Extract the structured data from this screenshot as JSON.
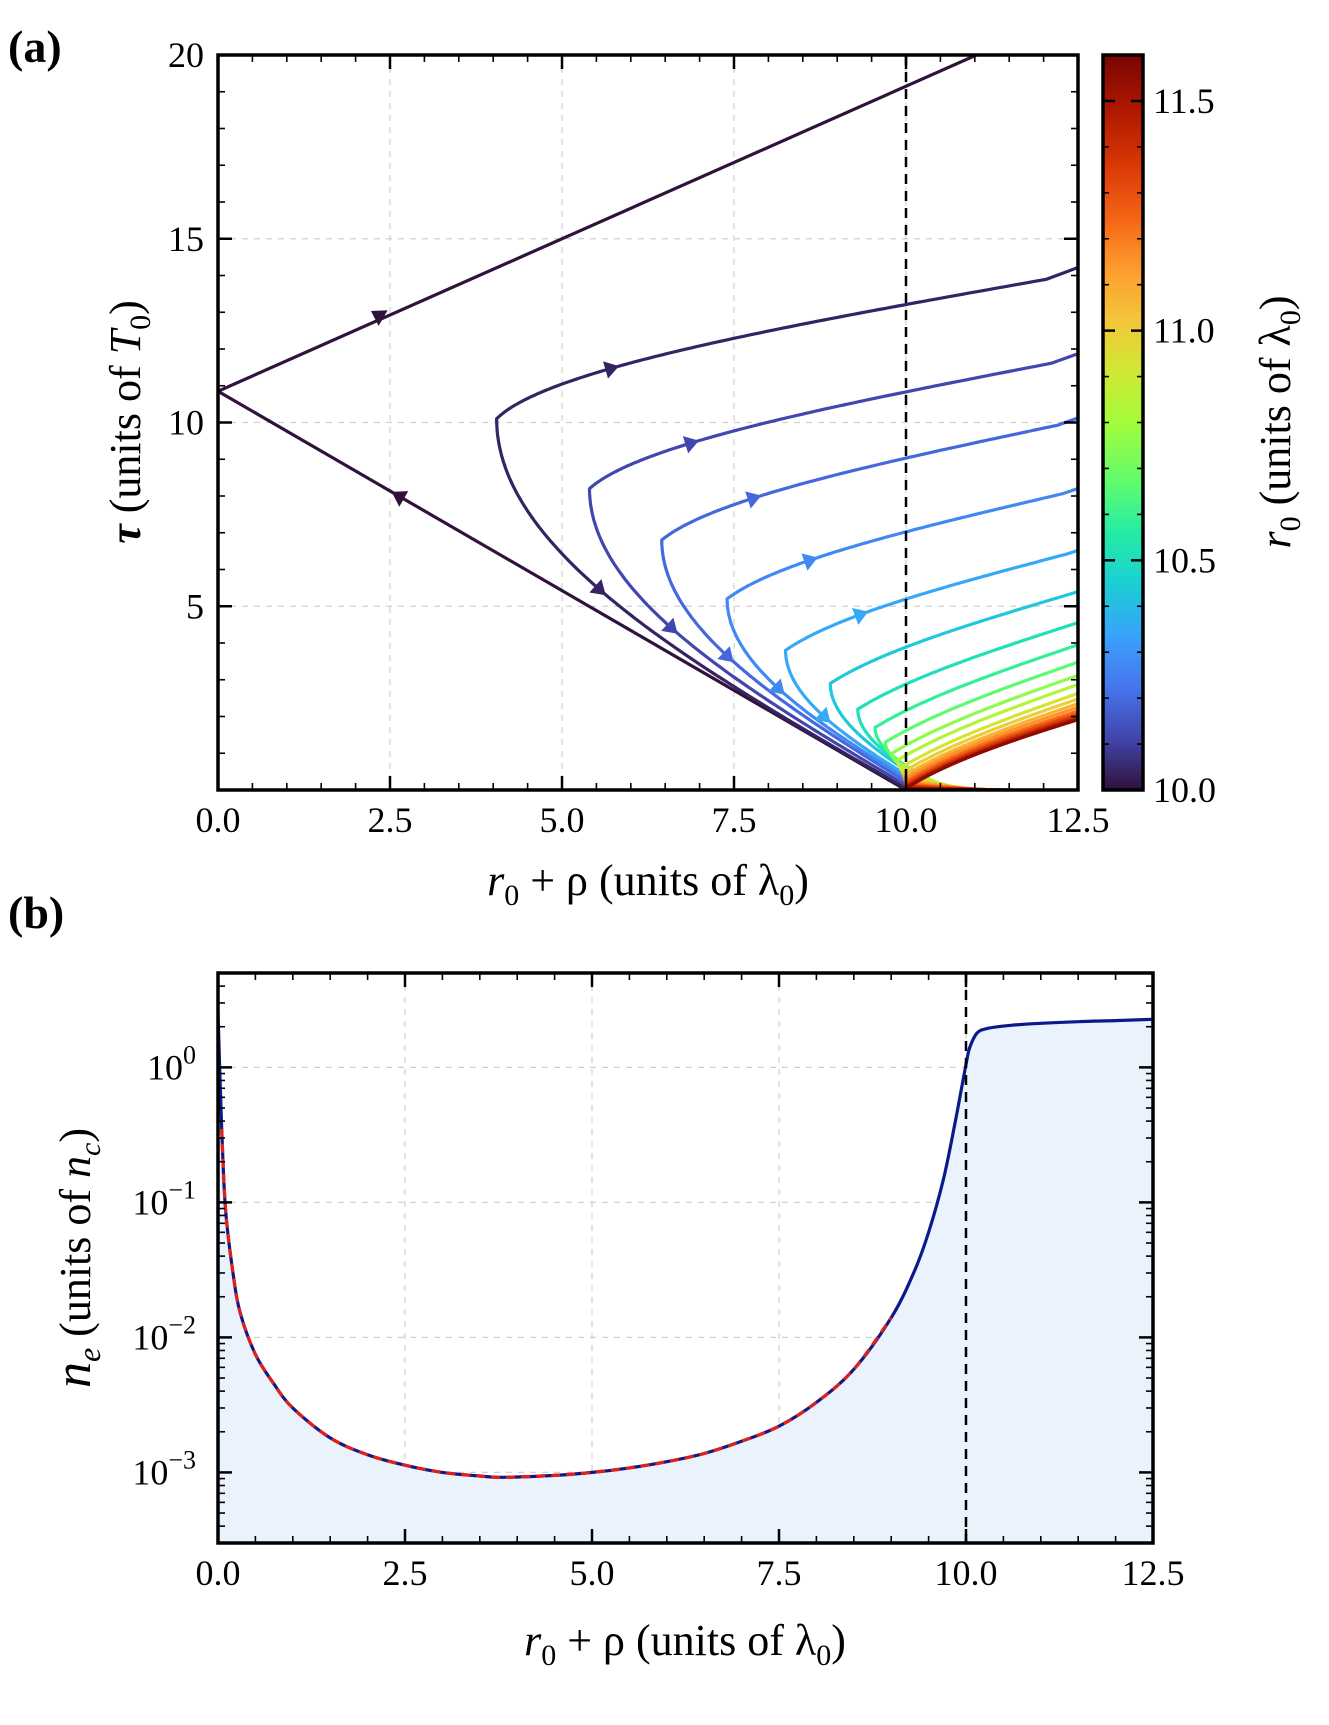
{
  "panel_a": {
    "label": "(a)",
    "xlabel": {
      "main": "r",
      "sub": "0",
      "rest": " + ρ (units of λ",
      "sub2": "0",
      "end": ")"
    },
    "ylabel": {
      "sym": "τ",
      "rest": " (units of ",
      "T": "T",
      "sub": "0",
      "end": ")"
    },
    "colorbar_label": {
      "sym": "r",
      "sub": "0",
      "rest": " (units of λ",
      "sub2": "0",
      "end": ")"
    },
    "colorbar_ticks": [
      "10.0",
      "10.5",
      "11.0",
      "11.5"
    ]
  },
  "panel_b": {
    "label": "(b)",
    "xlabel": {
      "main": "r",
      "sub": "0",
      "rest": " + ρ (units of λ",
      "sub2": "0",
      "end": ")"
    },
    "ylabel": {
      "sym": "n",
      "sub": "e",
      "rest": " (units of ",
      "n": "n",
      "sub2": "c",
      "end": ")"
    }
  },
  "chart_data": [
    {
      "type": "line",
      "xlim": [
        0,
        12.5
      ],
      "ylim": [
        0,
        20
      ],
      "x_ticks": [
        "0.0",
        "2.5",
        "5.0",
        "7.5",
        "10.0",
        "12.5"
      ],
      "y_ticks": [
        "5",
        "10",
        "15",
        "20"
      ],
      "grid": true,
      "reference_line_x": 10.0,
      "colorbar": {
        "range": [
          10.0,
          11.6
        ],
        "colormap": "turbo",
        "ticks": [
          10.0,
          10.5,
          11.0,
          11.5
        ]
      },
      "series": [
        {
          "r0": 10.0,
          "tmin": 10.85,
          "rmin": 0.0,
          "arrows": [
            2.4,
            2.7
          ]
        },
        {
          "r0": 10.04,
          "tmin": 10.1,
          "rmin": 4.05,
          "arrows": [
            5.0,
            5.1
          ]
        },
        {
          "r0": 10.12,
          "tmin": 8.2,
          "rmin": 5.4,
          "arrows": [
            5.9,
            6.0
          ]
        },
        {
          "r0": 10.2,
          "tmin": 6.8,
          "rmin": 6.45,
          "arrows": [
            6.9,
            7.1
          ]
        },
        {
          "r0": 10.28,
          "tmin": 5.2,
          "rmin": 7.4,
          "arrows": [
            7.6,
            7.8
          ]
        },
        {
          "r0": 10.36,
          "tmin": 3.8,
          "rmin": 8.25,
          "arrows": [
            8.4,
            8.6
          ]
        },
        {
          "r0": 10.44,
          "tmin": 2.9,
          "rmin": 8.9
        },
        {
          "r0": 10.52,
          "tmin": 2.2,
          "rmin": 9.3
        },
        {
          "r0": 10.6,
          "tmin": 1.7,
          "rmin": 9.55
        },
        {
          "r0": 10.68,
          "tmin": 1.3,
          "rmin": 9.7
        },
        {
          "r0": 10.76,
          "tmin": 1.0,
          "rmin": 9.8
        },
        {
          "r0": 10.84,
          "tmin": 0.8,
          "rmin": 9.87
        },
        {
          "r0": 10.92,
          "tmin": 0.6,
          "rmin": 9.92
        },
        {
          "r0": 11.0,
          "tmin": 0.48,
          "rmin": 9.95
        },
        {
          "r0": 11.08,
          "tmin": 0.38,
          "rmin": 9.97
        },
        {
          "r0": 11.16,
          "tmin": 0.3,
          "rmin": 9.98
        },
        {
          "r0": 11.24,
          "tmin": 0.22,
          "rmin": 9.99
        },
        {
          "r0": 11.32,
          "tmin": 0.16,
          "rmin": 9.995
        },
        {
          "r0": 11.4,
          "tmin": 0.11,
          "rmin": 10.0
        },
        {
          "r0": 11.48,
          "tmin": 0.07,
          "rmin": 10.0
        },
        {
          "r0": 11.56,
          "tmin": 0.04,
          "rmin": 10.0
        }
      ]
    },
    {
      "type": "line",
      "y_scale": "log",
      "xlim": [
        0,
        12.5
      ],
      "ylim": [
        0.0003,
        5
      ],
      "x_ticks": [
        "0.0",
        "2.5",
        "5.0",
        "7.5",
        "10.0",
        "12.5"
      ],
      "y_ticks": [
        {
          "base": "10",
          "exp": "0"
        },
        {
          "base": "10",
          "exp": "−1"
        },
        {
          "base": "10",
          "exp": "−2"
        },
        {
          "base": "10",
          "exp": "−3"
        }
      ],
      "grid": true,
      "reference_line_x": 10.0,
      "series": [
        {
          "style": "solid-navy-filled",
          "x": [
            0.0,
            0.05,
            0.1,
            0.2,
            0.3,
            0.5,
            0.75,
            1.0,
            1.5,
            2.0,
            2.5,
            3.0,
            3.5,
            3.8,
            4.5,
            5.0,
            5.5,
            6.0,
            6.5,
            7.0,
            7.5,
            8.0,
            8.5,
            9.0,
            9.3,
            9.5,
            9.7,
            9.85,
            9.95,
            10.0,
            10.05,
            10.15,
            10.3,
            10.6,
            11.0,
            11.5,
            12.0,
            12.5
          ],
          "y": [
            2.5,
            0.35,
            0.09,
            0.03,
            0.015,
            0.0075,
            0.0045,
            0.003,
            0.0018,
            0.00135,
            0.00113,
            0.001,
            0.00094,
            0.00092,
            0.00095,
            0.001,
            0.00108,
            0.0012,
            0.00138,
            0.0017,
            0.0022,
            0.0033,
            0.0058,
            0.014,
            0.03,
            0.06,
            0.15,
            0.38,
            0.75,
            1.05,
            1.4,
            1.8,
            1.95,
            2.05,
            2.12,
            2.18,
            2.22,
            2.27
          ]
        },
        {
          "style": "dashed-red",
          "x": [
            0.05,
            0.1,
            0.2,
            0.3,
            0.5,
            0.75,
            1.0,
            1.5,
            2.0,
            2.5,
            3.0,
            3.5,
            3.8,
            4.5,
            5.0,
            5.5,
            6.0,
            6.5,
            7.0,
            7.5,
            8.0,
            8.5,
            9.0
          ],
          "y": [
            0.35,
            0.09,
            0.03,
            0.015,
            0.0075,
            0.0045,
            0.003,
            0.0018,
            0.00135,
            0.00113,
            0.001,
            0.00094,
            0.00092,
            0.00095,
            0.001,
            0.00108,
            0.0012,
            0.00138,
            0.0017,
            0.0022,
            0.0033,
            0.0058,
            0.014
          ]
        }
      ]
    }
  ]
}
